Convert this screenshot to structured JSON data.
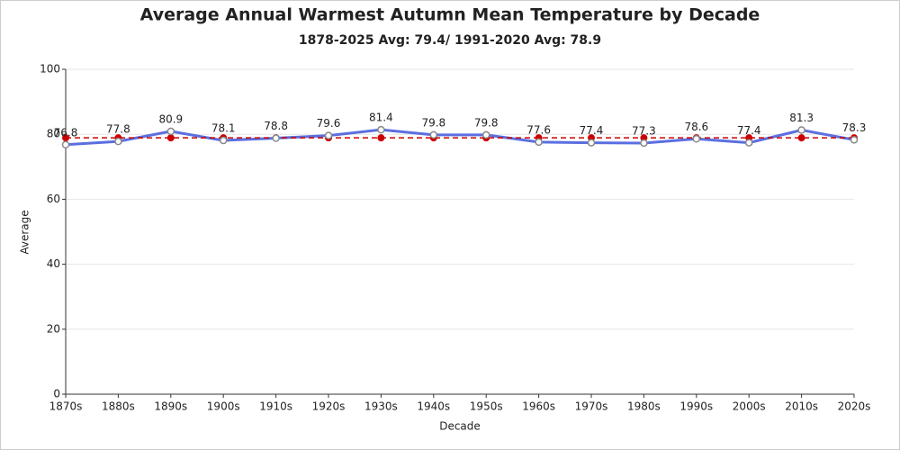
{
  "chart_data": {
    "type": "line",
    "title": "Average Annual Warmest Autumn Mean Temperature by Decade",
    "subtitle": "1878-2025 Avg: 79.4/ 1991-2020 Avg: 78.9",
    "x_label": "Decade",
    "y_label": "Average",
    "categories": [
      "1870s",
      "1880s",
      "1890s",
      "1900s",
      "1910s",
      "1920s",
      "1930s",
      "1940s",
      "1950s",
      "1960s",
      "1970s",
      "1980s",
      "1990s",
      "2000s",
      "2010s",
      "2020s"
    ],
    "values": [
      76.8,
      77.8,
      80.9,
      78.1,
      78.8,
      79.6,
      81.4,
      79.8,
      79.8,
      77.6,
      77.4,
      77.3,
      78.6,
      77.4,
      81.3,
      78.3
    ],
    "color": "#5b6fe0",
    "reference_line": {
      "value": 78.9,
      "color": "#cc0000"
    },
    "ylim": [
      0,
      100
    ],
    "yticks": [
      0,
      20,
      40,
      60,
      80,
      100
    ],
    "grid": true
  }
}
